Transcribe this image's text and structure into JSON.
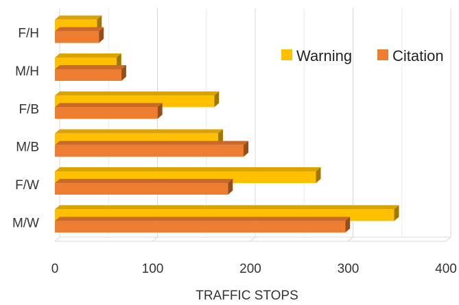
{
  "chart_data": {
    "type": "bar",
    "orientation": "horizontal",
    "style": "3d",
    "categories": [
      "F/H",
      "M/H",
      "F/B",
      "M/B",
      "F/W",
      "M/W"
    ],
    "series": [
      {
        "name": "Warning",
        "values": [
          43,
          63,
          163,
          167,
          267,
          347
        ],
        "color": "#FFC000"
      },
      {
        "name": "Citation",
        "values": [
          45,
          68,
          105,
          193,
          177,
          297
        ],
        "color": "#ED7D31"
      }
    ],
    "xlabel": "TRAFFIC STOPS",
    "ylabel": "",
    "xlim": [
      0,
      400
    ],
    "xticks": [
      0,
      100,
      200,
      300,
      400
    ],
    "grid": true,
    "legend_position": "right"
  }
}
